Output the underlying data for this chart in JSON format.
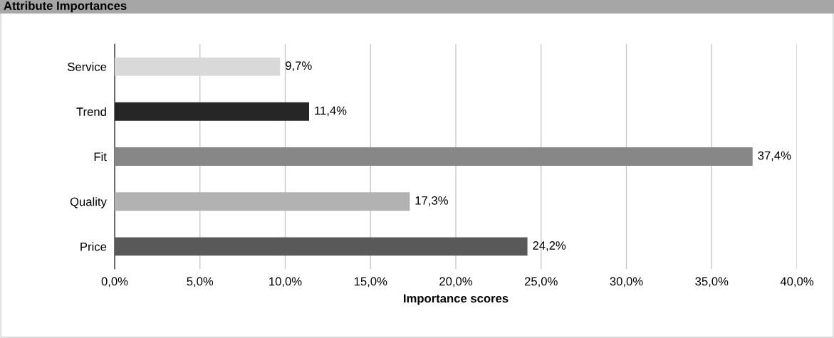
{
  "chart_data": {
    "type": "bar",
    "orientation": "horizontal",
    "title": "Attribute Importances",
    "xlabel": "Importance scores",
    "categories": [
      "Service",
      "Trend",
      "Fit",
      "Quality",
      "Price"
    ],
    "values": [
      9.7,
      11.4,
      37.4,
      17.3,
      24.2
    ],
    "colors": [
      "#d9d9d9",
      "#262626",
      "#878787",
      "#b2b2b2",
      "#595959"
    ],
    "value_labels": [
      "9,7%",
      "11,4%",
      "37,4%",
      "17,3%",
      "24,2%"
    ],
    "xlim": [
      0,
      40
    ],
    "xticks": [
      {
        "value": 0,
        "label": "0,0%"
      },
      {
        "value": 5,
        "label": "5,0%"
      },
      {
        "value": 10,
        "label": "10,0%"
      },
      {
        "value": 15,
        "label": "15,0%"
      },
      {
        "value": 20,
        "label": "20,0%"
      },
      {
        "value": 25,
        "label": "25,0%"
      },
      {
        "value": 30,
        "label": "30,0%"
      },
      {
        "value": 35,
        "label": "35,0%"
      },
      {
        "value": 40,
        "label": "40,0%"
      }
    ],
    "grid": "x"
  }
}
